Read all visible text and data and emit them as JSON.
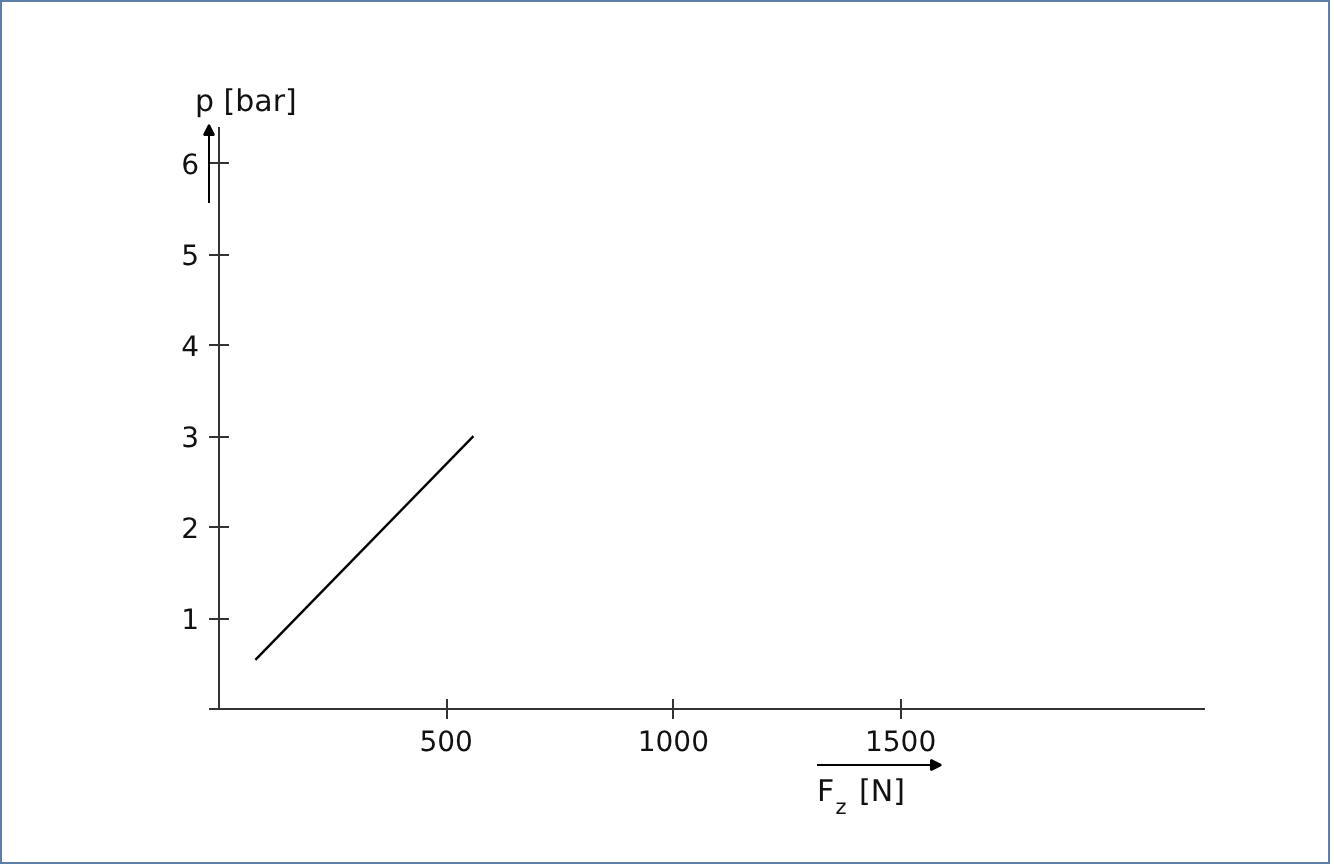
{
  "chart_data": {
    "type": "line",
    "xlabel": "F$_{z}$ [N]",
    "ylabel": "p [bar]",
    "x": [
      80,
      560
    ],
    "series": [
      {
        "color": "#000000",
        "values": [
          0.54,
          3.0
        ]
      }
    ],
    "xlim": [
      0,
      2170
    ],
    "ylim": [
      0,
      6.4
    ],
    "xticks": [
      500,
      1000,
      1500
    ],
    "yticks": [
      {
        "value": 0,
        "label": null
      },
      1,
      2,
      3,
      4,
      5,
      6
    ],
    "grid": false,
    "marker": "none",
    "line_style": "solid"
  }
}
